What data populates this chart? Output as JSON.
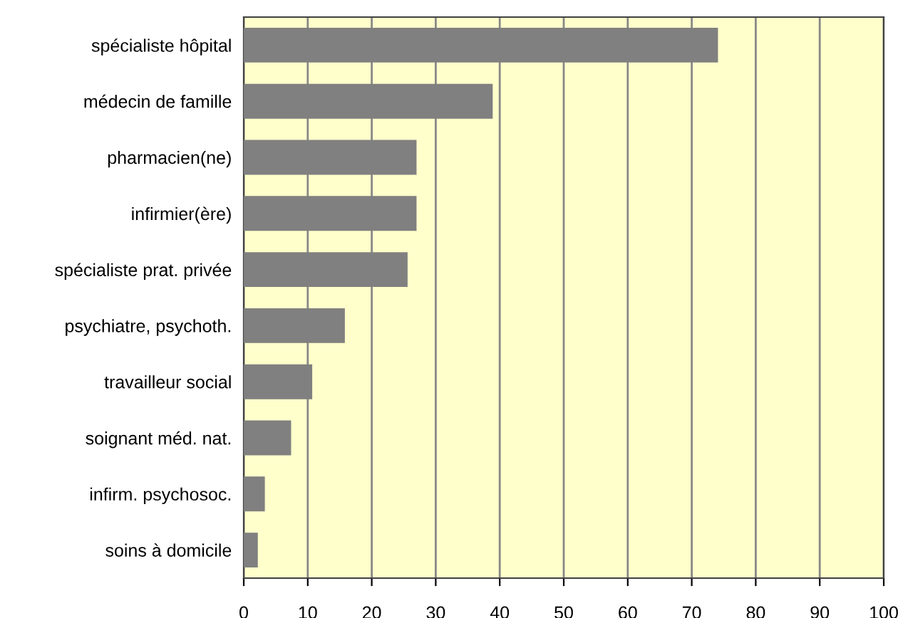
{
  "chart_data": {
    "type": "bar",
    "orientation": "horizontal",
    "categories": [
      "spécialiste hôpital",
      "médecin de famille",
      "pharmacien(ne)",
      "infirmier(ère)",
      "spécialiste prat. privée",
      "psychiatre, psychoth.",
      "travailleur social",
      "soignant méd. nat.",
      "infirm. psychosoc.",
      "soins à domicile"
    ],
    "values": [
      74.1,
      38.9,
      27.0,
      27.0,
      25.6,
      15.8,
      10.7,
      7.4,
      3.3,
      2.2
    ],
    "color": "#808080",
    "xlim": [
      0,
      100
    ],
    "xticks": [
      0,
      10,
      20,
      30,
      40,
      50,
      60,
      70,
      80,
      90,
      100
    ],
    "grid": "x"
  }
}
